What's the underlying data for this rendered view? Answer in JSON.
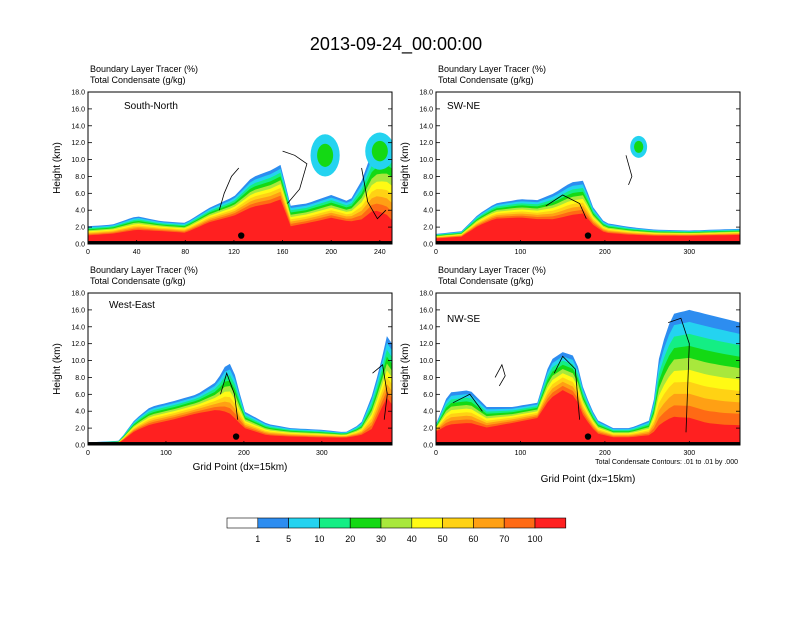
{
  "title": "2013-09-24_00:00:00",
  "colors": [
    "#ffffff",
    "#2d8df0",
    "#24d3f0",
    "#14ee84",
    "#14d914",
    "#a8e83c",
    "#fffa14",
    "#ffd214",
    "#ffa014",
    "#ff6a14",
    "#ff2020"
  ],
  "contour_color": "#000000",
  "colorbar": {
    "labels": [
      "1",
      "5",
      "10",
      "20",
      "30",
      "40",
      "50",
      "60",
      "70",
      "100"
    ]
  },
  "chart_data": [
    {
      "type": "heatmap",
      "panel": "South-North",
      "subtitle_1": "Boundary Layer Tracer   (%)",
      "subtitle_2": "Total Condensate   (g/kg)",
      "ylabel": "Height (km)",
      "xlabel": "",
      "xlim": [
        0,
        250
      ],
      "ylim": [
        0,
        18
      ],
      "xticks": [
        0,
        40,
        80,
        120,
        160,
        200,
        240
      ],
      "yticks": [
        "0.0",
        "2.0",
        "4.0",
        "6.0",
        "8.0",
        "10.0",
        "12.0",
        "14.0",
        "16.0",
        "18.0"
      ],
      "marker_x": 126,
      "profile": {
        "top": [
          [
            0,
            2.1
          ],
          [
            20,
            2.3
          ],
          [
            40,
            3.3
          ],
          [
            60,
            2.7
          ],
          [
            80,
            2.5
          ],
          [
            100,
            4.3
          ],
          [
            120,
            5.6
          ],
          [
            135,
            7.9
          ],
          [
            150,
            8.7
          ],
          [
            160,
            9.5
          ],
          [
            165,
            4.5
          ],
          [
            180,
            4.8
          ],
          [
            200,
            5.8
          ],
          [
            215,
            5.0
          ],
          [
            225,
            7.5
          ],
          [
            235,
            11.5
          ],
          [
            245,
            12.3
          ],
          [
            250,
            12.0
          ]
        ],
        "cores": [
          [
            0,
            0.9
          ],
          [
            20,
            1.1
          ],
          [
            40,
            1.5
          ],
          [
            60,
            1.4
          ],
          [
            80,
            1.2
          ],
          [
            100,
            2.4
          ],
          [
            120,
            3.1
          ],
          [
            135,
            4.0
          ],
          [
            150,
            4.4
          ],
          [
            160,
            4.9
          ],
          [
            165,
            1.8
          ],
          [
            180,
            2.2
          ],
          [
            200,
            2.8
          ],
          [
            215,
            2.4
          ],
          [
            225,
            2.4
          ],
          [
            235,
            3.2
          ],
          [
            245,
            2.6
          ],
          [
            250,
            1.8
          ]
        ]
      },
      "blobs": [
        [
          195,
          10.5,
          12,
          2.5
        ],
        [
          240,
          11.0,
          12,
          2.2
        ]
      ],
      "contours": [
        [
          [
            108,
            4.0
          ],
          [
            112,
            6.0
          ],
          [
            118,
            8.0
          ],
          [
            124,
            9.0
          ]
        ],
        [
          [
            160,
            11.0
          ],
          [
            170,
            10.5
          ],
          [
            180,
            9.5
          ],
          [
            174,
            6.5
          ],
          [
            164,
            4.8
          ]
        ],
        [
          [
            225,
            9.0
          ],
          [
            230,
            5.0
          ],
          [
            238,
            3.0
          ],
          [
            245,
            4.0
          ]
        ]
      ]
    },
    {
      "type": "heatmap",
      "panel": "SW-NE",
      "subtitle_1": "Boundary Layer Tracer   (%)",
      "subtitle_2": "Total Condensate   (g/kg)",
      "ylabel": "Height (km)",
      "xlabel": "",
      "xlim": [
        0,
        360
      ],
      "ylim": [
        0,
        18
      ],
      "xticks": [
        0,
        100,
        200,
        300
      ],
      "yticks": [
        "0.0",
        "2.0",
        "4.0",
        "6.0",
        "8.0",
        "10.0",
        "12.0",
        "14.0",
        "16.0",
        "18.0"
      ],
      "marker_x": 180,
      "profile": {
        "top": [
          [
            0,
            1.2
          ],
          [
            30,
            1.5
          ],
          [
            50,
            3.5
          ],
          [
            70,
            4.8
          ],
          [
            100,
            5.3
          ],
          [
            120,
            5.2
          ],
          [
            140,
            6.0
          ],
          [
            160,
            7.3
          ],
          [
            175,
            7.5
          ],
          [
            185,
            4.5
          ],
          [
            200,
            2.5
          ],
          [
            230,
            2.0
          ],
          [
            260,
            1.7
          ],
          [
            300,
            1.6
          ],
          [
            360,
            1.8
          ]
        ],
        "cores": [
          [
            0,
            0.6
          ],
          [
            30,
            0.8
          ],
          [
            50,
            2.0
          ],
          [
            70,
            2.8
          ],
          [
            100,
            2.9
          ],
          [
            120,
            2.7
          ],
          [
            140,
            2.6
          ],
          [
            160,
            3.0
          ],
          [
            175,
            3.2
          ],
          [
            185,
            2.1
          ],
          [
            200,
            1.2
          ],
          [
            230,
            1.0
          ],
          [
            260,
            0.9
          ],
          [
            300,
            0.9
          ],
          [
            360,
            1.0
          ]
        ]
      },
      "blobs": [
        [
          240,
          11.5,
          10,
          1.3
        ]
      ],
      "contours": [
        [
          [
            130,
            4.5
          ],
          [
            150,
            5.8
          ],
          [
            170,
            4.8
          ],
          [
            178,
            3.0
          ]
        ],
        [
          [
            225,
            10.5
          ],
          [
            232,
            8.0
          ],
          [
            228,
            7.0
          ]
        ]
      ]
    },
    {
      "type": "heatmap",
      "panel": "West-East",
      "subtitle_1": "Boundary Layer Tracer   (%)",
      "subtitle_2": "Total Condensate   (g/kg)",
      "ylabel": "Height (km)",
      "xlabel": "Grid Point (dx=15km)",
      "xlim": [
        0,
        390
      ],
      "ylim": [
        0,
        18
      ],
      "xticks": [
        0,
        100,
        200,
        300
      ],
      "yticks": [
        "0.0",
        "2.0",
        "4.0",
        "6.0",
        "8.0",
        "10.0",
        "12.0",
        "14.0",
        "16.0",
        "18.0"
      ],
      "marker_x": 190,
      "profile": {
        "top": [
          [
            0,
            0.3
          ],
          [
            40,
            0.5
          ],
          [
            60,
            3.0
          ],
          [
            80,
            4.5
          ],
          [
            110,
            5.2
          ],
          [
            140,
            6.0
          ],
          [
            165,
            7.5
          ],
          [
            180,
            10.0
          ],
          [
            190,
            8.0
          ],
          [
            200,
            4.0
          ],
          [
            230,
            2.5
          ],
          [
            260,
            2.0
          ],
          [
            300,
            1.8
          ],
          [
            330,
            1.5
          ],
          [
            350,
            2.5
          ],
          [
            365,
            6.0
          ],
          [
            375,
            9.5
          ],
          [
            385,
            13.5
          ],
          [
            390,
            12.0
          ]
        ],
        "cores": [
          [
            0,
            0.1
          ],
          [
            40,
            0.2
          ],
          [
            60,
            1.5
          ],
          [
            80,
            2.2
          ],
          [
            110,
            2.8
          ],
          [
            140,
            3.5
          ],
          [
            165,
            3.8
          ],
          [
            180,
            3.2
          ],
          [
            190,
            2.5
          ],
          [
            200,
            1.8
          ],
          [
            230,
            1.0
          ],
          [
            260,
            0.9
          ],
          [
            300,
            0.8
          ],
          [
            330,
            0.8
          ],
          [
            350,
            1.0
          ],
          [
            365,
            1.5
          ],
          [
            375,
            3.5
          ],
          [
            385,
            5.0
          ],
          [
            390,
            4.0
          ]
        ]
      },
      "blobs": [],
      "contours": [
        [
          [
            170,
            6.0
          ],
          [
            178,
            8.5
          ],
          [
            188,
            6.0
          ],
          [
            192,
            3.0
          ]
        ],
        [
          [
            365,
            8.5
          ],
          [
            378,
            9.5
          ],
          [
            384,
            6.0
          ],
          [
            380,
            3.0
          ]
        ]
      ]
    },
    {
      "type": "heatmap",
      "panel": "NW-SE",
      "subtitle_1": "Boundary Layer Tracer   (%)",
      "subtitle_2": "Total Condensate   (g/kg)",
      "ylabel": "Height (km)",
      "xlabel": "Grid Point (dx=15km)",
      "xlim": [
        0,
        360
      ],
      "ylim": [
        0,
        18
      ],
      "xticks": [
        0,
        100,
        200,
        300
      ],
      "yticks": [
        "0.0",
        "2.0",
        "4.0",
        "6.0",
        "8.0",
        "10.0",
        "12.0",
        "14.0",
        "16.0",
        "18.0"
      ],
      "marker_x": 180,
      "footnote": "Total Condensate Contours: .01 to .01 by .000",
      "profile": {
        "top": [
          [
            0,
            2.5
          ],
          [
            15,
            6.2
          ],
          [
            40,
            6.5
          ],
          [
            60,
            4.5
          ],
          [
            90,
            4.5
          ],
          [
            120,
            5.0
          ],
          [
            135,
            10.0
          ],
          [
            150,
            11.0
          ],
          [
            165,
            10.5
          ],
          [
            175,
            6.5
          ],
          [
            190,
            3.0
          ],
          [
            210,
            2.0
          ],
          [
            230,
            2.0
          ],
          [
            255,
            3.0
          ],
          [
            265,
            11.0
          ],
          [
            280,
            15.5
          ],
          [
            300,
            16.0
          ],
          [
            320,
            15.5
          ],
          [
            340,
            15.0
          ],
          [
            360,
            14.5
          ]
        ],
        "cores": [
          [
            0,
            1.5
          ],
          [
            15,
            2.0
          ],
          [
            40,
            2.2
          ],
          [
            60,
            1.8
          ],
          [
            90,
            2.4
          ],
          [
            120,
            3.0
          ],
          [
            135,
            5.0
          ],
          [
            150,
            6.0
          ],
          [
            165,
            5.2
          ],
          [
            175,
            3.0
          ],
          [
            190,
            1.2
          ],
          [
            210,
            0.8
          ],
          [
            230,
            0.8
          ],
          [
            255,
            1.0
          ],
          [
            265,
            1.5
          ],
          [
            280,
            2.0
          ],
          [
            300,
            1.8
          ],
          [
            320,
            1.2
          ],
          [
            340,
            1.0
          ],
          [
            360,
            1.0
          ]
        ]
      },
      "blobs": [],
      "contours": [
        [
          [
            70,
            8.0
          ],
          [
            78,
            9.5
          ],
          [
            82,
            8.2
          ],
          [
            75,
            7.0
          ]
        ],
        [
          [
            20,
            5.0
          ],
          [
            40,
            6.0
          ],
          [
            55,
            4.0
          ]
        ],
        [
          [
            140,
            8.5
          ],
          [
            150,
            10.5
          ],
          [
            165,
            9.0
          ],
          [
            170,
            3.0
          ]
        ],
        [
          [
            275,
            14.5
          ],
          [
            290,
            15.0
          ],
          [
            300,
            12.0
          ],
          [
            296,
            1.5
          ]
        ]
      ]
    }
  ]
}
